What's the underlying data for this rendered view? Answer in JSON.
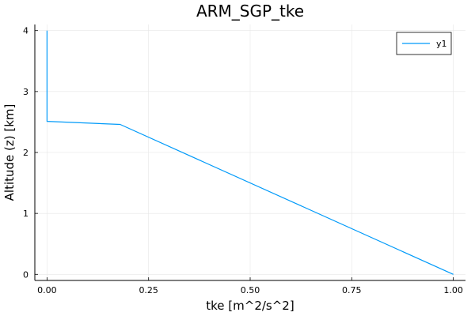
{
  "chart_data": {
    "type": "line",
    "title": "ARM_SGP_tke",
    "xlabel": "tke [m^2/s^2]",
    "ylabel": "Altitude (z) [km]",
    "xlim": [
      -0.03,
      1.03
    ],
    "ylim": [
      -0.1,
      4.1
    ],
    "xticks": [
      0.0,
      0.25,
      0.5,
      0.75,
      1.0
    ],
    "xtick_labels": [
      "0.00",
      "0.25",
      "0.50",
      "0.75",
      "1.00"
    ],
    "yticks": [
      0,
      1,
      2,
      3,
      4
    ],
    "ytick_labels": [
      "0",
      "1",
      "2",
      "3",
      "4"
    ],
    "grid": true,
    "legend": {
      "position": "top-right",
      "entries": [
        "y1"
      ]
    },
    "series": [
      {
        "name": "y1",
        "color": "#009af9",
        "x": [
          1.0,
          0.18,
          0.0,
          0.0
        ],
        "y": [
          0.0,
          2.46,
          2.51,
          4.0
        ]
      }
    ]
  }
}
